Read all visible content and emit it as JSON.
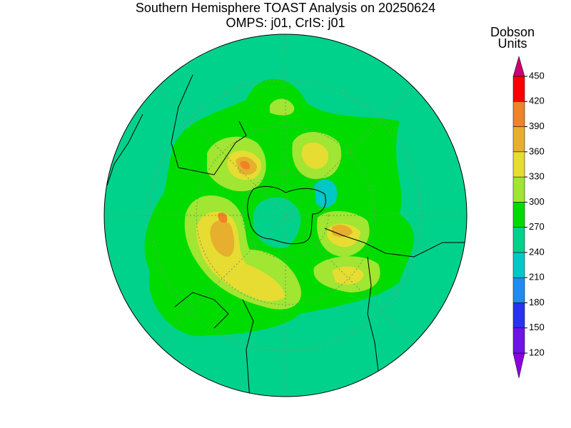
{
  "title": [
    "Southern Hemisphere TOAST Analysis on 20250624",
    "OMPS: j01, CrIS: j01"
  ],
  "colorbar": {
    "label": [
      "Dobson",
      "Units"
    ],
    "ticks": [
      120,
      150,
      180,
      210,
      240,
      270,
      300,
      330,
      360,
      390,
      420,
      450
    ],
    "colors": [
      "#8c00dc",
      "#6e14e6",
      "#2832f0",
      "#1e8cf0",
      "#00c8c8",
      "#00d28c",
      "#00dc00",
      "#a0e632",
      "#e6dc32",
      "#e6af2d",
      "#f08228",
      "#fa0000",
      "#c8006e"
    ]
  }
}
